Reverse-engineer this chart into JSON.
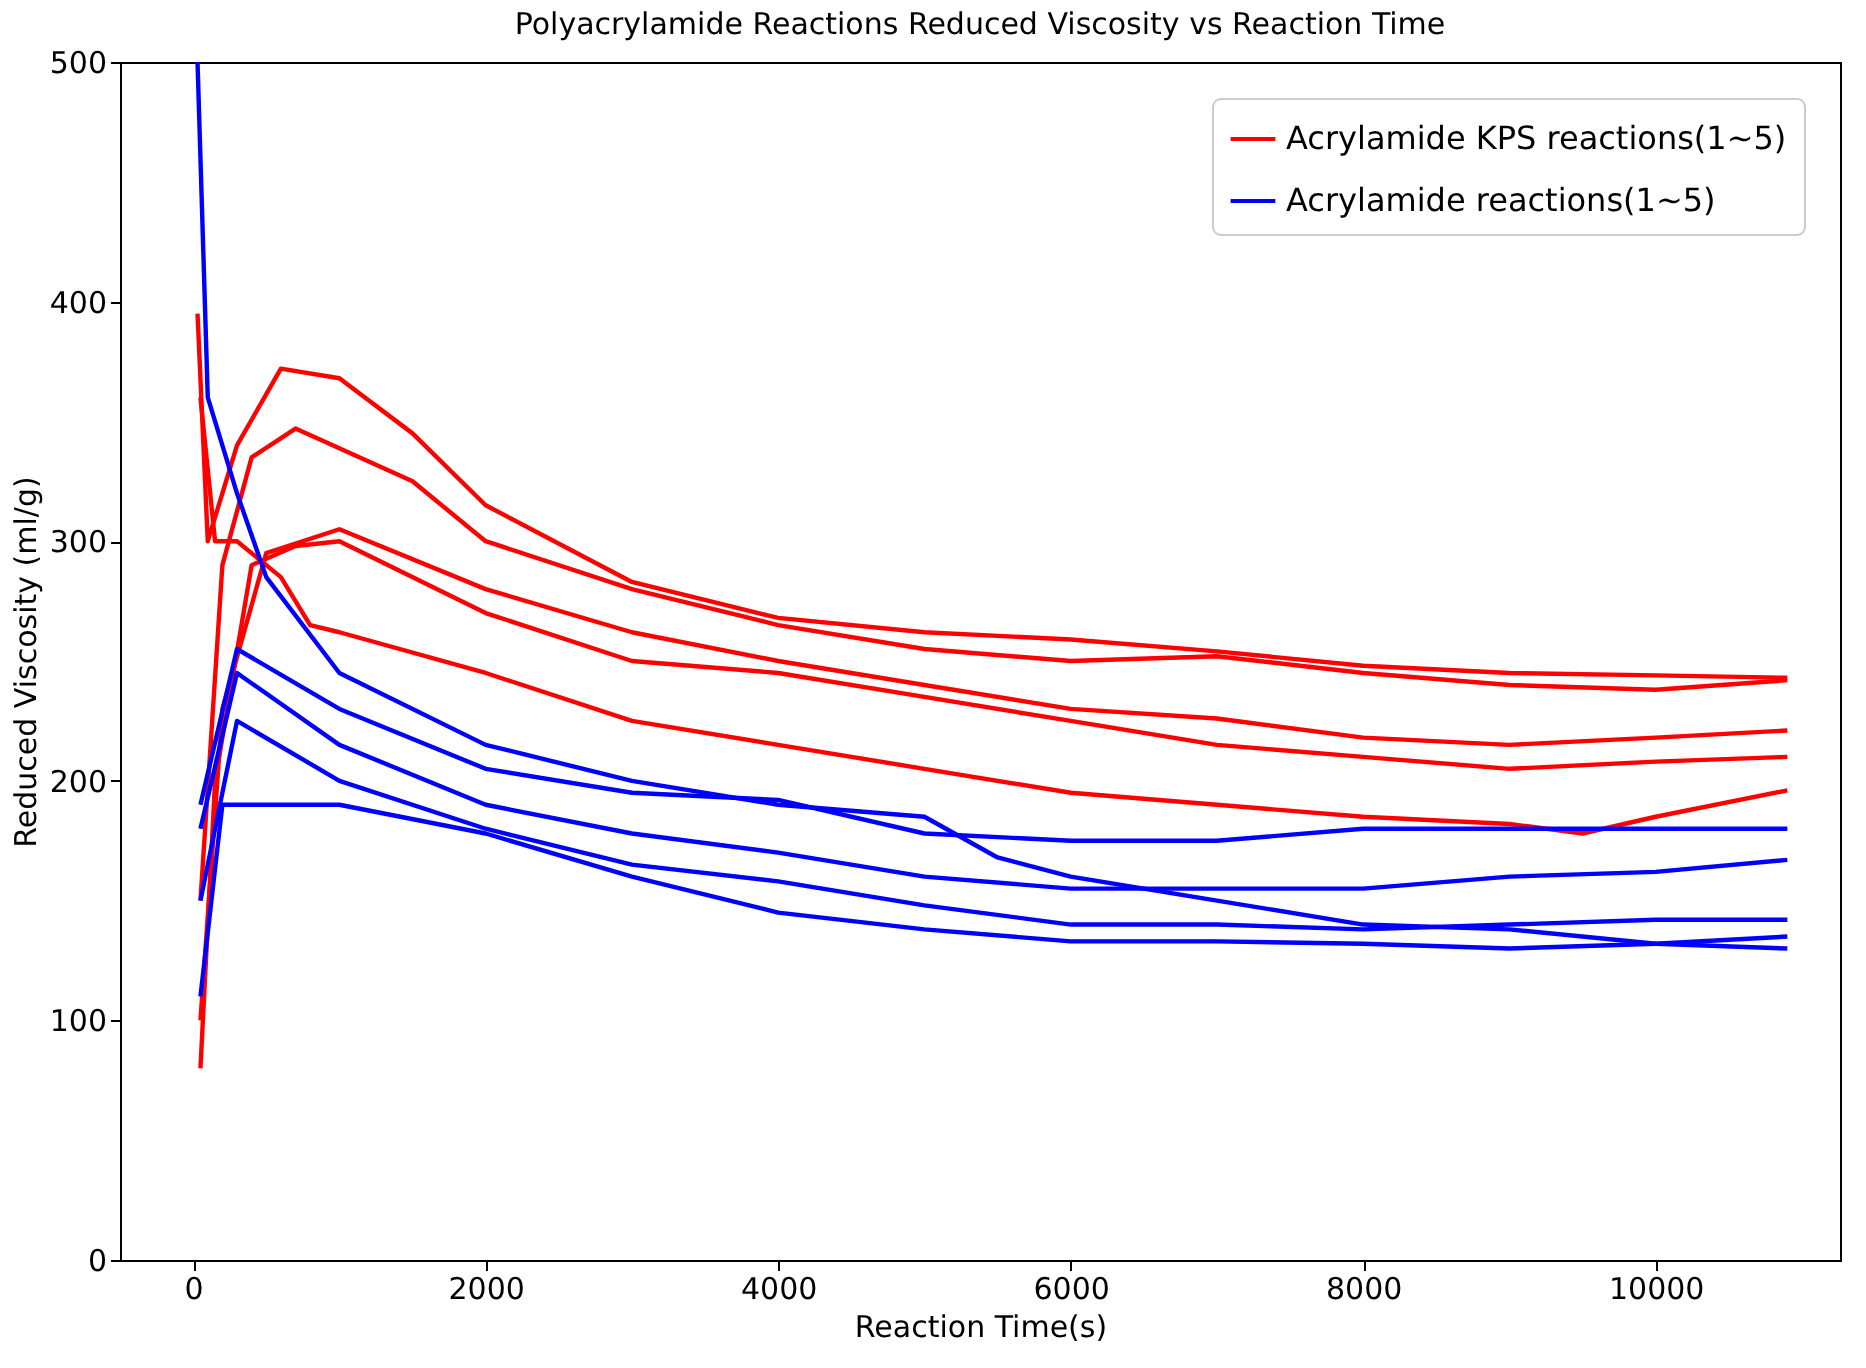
{
  "chart_data": {
    "type": "line",
    "title": "Polyacrylamide Reactions Reduced Viscosity vs Reaction Time",
    "xlabel": "Reaction Time(s)",
    "ylabel": "Reduced Viscosity (ml/g)",
    "xlim": [
      -500,
      11260
    ],
    "xticks": [
      0,
      2000,
      4000,
      6000,
      8000,
      10000
    ],
    "ylim": [
      0,
      500
    ],
    "yticks": [
      0,
      100,
      200,
      300,
      400,
      500
    ],
    "grid": false,
    "legend": "top right",
    "line_style": "solid",
    "series": [
      {
        "name": "Acrylamide KPS reactions(1~5)",
        "color": "#ff0000",
        "x": [
          30,
          100,
          300,
          600,
          1000,
          1500,
          2000,
          3000,
          4000,
          5000,
          6000,
          7000,
          8000,
          9000,
          10000,
          10900
        ],
        "values": [
          395,
          300,
          340,
          372,
          368,
          345,
          315,
          283,
          268,
          262,
          259,
          254,
          248,
          245,
          244,
          243
        ]
      },
      {
        "color": "#ff0000",
        "x": [
          50,
          200,
          400,
          700,
          1500,
          2000,
          3000,
          4000,
          5000,
          6000,
          7000,
          8000,
          9000,
          10000,
          10900
        ],
        "values": [
          150,
          290,
          335,
          347,
          325,
          300,
          280,
          265,
          255,
          250,
          252,
          245,
          240,
          238,
          242
        ]
      },
      {
        "color": "#ff0000",
        "x": [
          50,
          200,
          500,
          1000,
          2000,
          3000,
          4000,
          5000,
          6000,
          7000,
          8000,
          9000,
          10000,
          10900
        ],
        "values": [
          100,
          230,
          295,
          305,
          280,
          262,
          250,
          240,
          230,
          226,
          218,
          215,
          218,
          221
        ]
      },
      {
        "color": "#ff0000",
        "x": [
          50,
          150,
          400,
          700,
          1000,
          2000,
          3000,
          4000,
          5000,
          6000,
          7000,
          8000,
          9000,
          10000,
          10900
        ],
        "values": [
          80,
          200,
          290,
          298,
          300,
          270,
          250,
          245,
          235,
          225,
          215,
          210,
          205,
          208,
          210
        ]
      },
      {
        "color": "#ff0000",
        "x": [
          50,
          150,
          300,
          600,
          800,
          1000,
          2000,
          3000,
          4000,
          5000,
          6000,
          7000,
          8000,
          9000,
          9500,
          10000,
          10900
        ],
        "values": [
          360,
          300,
          300,
          285,
          265,
          262,
          245,
          225,
          215,
          205,
          195,
          190,
          185,
          182,
          178,
          185,
          196
        ]
      },
      {
        "name": "Acrylamide reactions(1~5)",
        "color": "#0000ff",
        "x": [
          30,
          100,
          200,
          300,
          500,
          1000,
          2000,
          3000,
          4000,
          5000,
          5500,
          6000,
          7000,
          8000,
          9000,
          10000,
          10900
        ],
        "values": [
          500,
          360,
          340,
          320,
          285,
          245,
          215,
          200,
          190,
          185,
          168,
          160,
          150,
          140,
          138,
          132,
          130
        ]
      },
      {
        "color": "#0000ff",
        "x": [
          50,
          300,
          1000,
          2000,
          3000,
          4000,
          5000,
          6000,
          7000,
          8000,
          9000,
          10000,
          10900
        ],
        "values": [
          190,
          255,
          230,
          205,
          195,
          192,
          178,
          175,
          175,
          180,
          180,
          180,
          180
        ]
      },
      {
        "color": "#0000ff",
        "x": [
          50,
          300,
          1000,
          2000,
          3000,
          4000,
          5000,
          6000,
          7000,
          8000,
          9000,
          10000,
          10900
        ],
        "values": [
          180,
          245,
          215,
          190,
          178,
          170,
          160,
          155,
          155,
          155,
          160,
          162,
          167
        ]
      },
      {
        "color": "#0000ff",
        "x": [
          50,
          300,
          1000,
          2000,
          3000,
          4000,
          5000,
          6000,
          7000,
          8000,
          9000,
          10000,
          10900
        ],
        "values": [
          150,
          225,
          200,
          180,
          165,
          158,
          148,
          140,
          140,
          138,
          140,
          142,
          142
        ]
      },
      {
        "color": "#0000ff",
        "x": [
          50,
          200,
          1000,
          2000,
          3000,
          4000,
          5000,
          6000,
          7000,
          8000,
          9000,
          10000,
          10900
        ],
        "values": [
          110,
          190,
          190,
          178,
          160,
          145,
          138,
          133,
          133,
          132,
          130,
          132,
          135
        ]
      }
    ]
  }
}
